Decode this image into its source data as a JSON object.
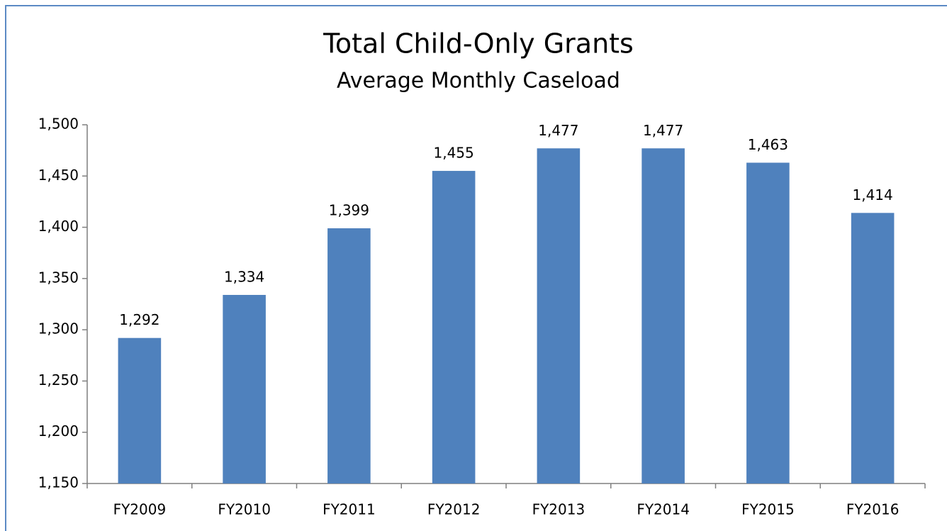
{
  "chart_data": {
    "type": "bar",
    "title": "Total Child-Only Grants",
    "subtitle": "Average Monthly Caseload",
    "categories": [
      "FY2009",
      "FY2010",
      "FY2011",
      "FY2012",
      "FY2013",
      "FY2014",
      "FY2015",
      "FY2016"
    ],
    "values": [
      1292,
      1334,
      1399,
      1455,
      1477,
      1477,
      1463,
      1414
    ],
    "value_labels": [
      "1,292",
      "1,334",
      "1,399",
      "1,455",
      "1,477",
      "1,477",
      "1,463",
      "1,414"
    ],
    "color": "#4f81bd",
    "ylim": [
      1150,
      1500
    ],
    "yticks": [
      {
        "value": 1150,
        "label": "1,150"
      },
      {
        "value": 1200,
        "label": "1,200"
      },
      {
        "value": 1250,
        "label": "1,250"
      },
      {
        "value": 1300,
        "label": "1,300"
      },
      {
        "value": 1350,
        "label": "1,350"
      },
      {
        "value": 1400,
        "label": "1,400"
      },
      {
        "value": 1450,
        "label": "1,450"
      },
      {
        "value": 1500,
        "label": "1,500"
      }
    ],
    "grid": false
  }
}
